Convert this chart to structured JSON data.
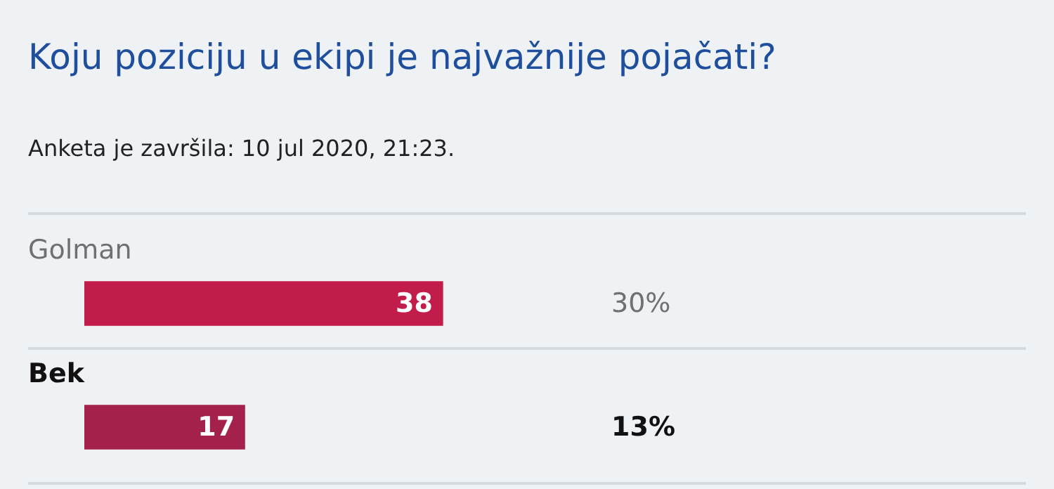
{
  "chart_data": {
    "type": "bar",
    "orientation": "horizontal",
    "title": "Koju poziciju u ekipi je najvažnije pojačati?",
    "subtitle": "Anketa je završila: 10 jul 2020, 21:23.",
    "categories": [
      "Golman",
      "Bek"
    ],
    "values": [
      38,
      17
    ],
    "colors": [
      "#c21c4a",
      "#a3214a"
    ],
    "data_labels": true,
    "legend": false,
    "annotations": [
      "30%",
      "13%"
    ]
  }
}
